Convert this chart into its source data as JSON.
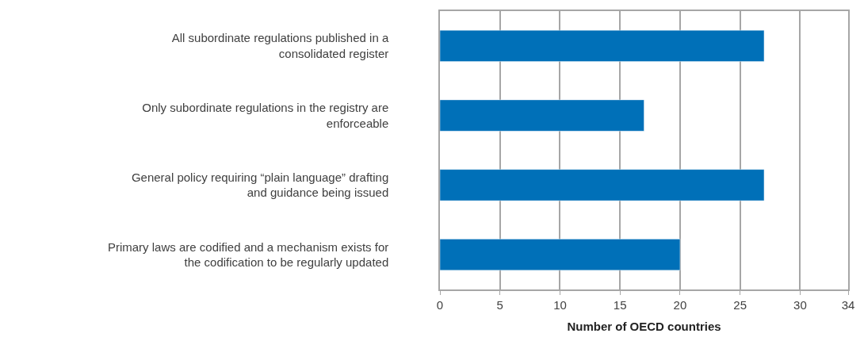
{
  "chart_data": {
    "type": "bar",
    "orientation": "horizontal",
    "xlabel": "Number of OECD countries",
    "categories": [
      "All subordinate regulations published in a consolidated register",
      "Only subordinate regulations in the registry are enforceable",
      "General policy requiring “plain language” drafting and guidance being issued",
      "Primary laws are codified and a mechanism exists for the codification to be regularly updated"
    ],
    "values": [
      27,
      17,
      27,
      20
    ],
    "color": "#0070b8",
    "xlim": [
      0,
      34
    ],
    "xticks": [
      0,
      5,
      10,
      15,
      20,
      25,
      30,
      34
    ],
    "grid": "x",
    "legend": false
  }
}
